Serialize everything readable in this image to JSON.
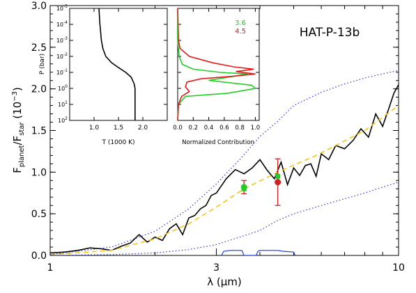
{
  "chart_data": [
    {
      "type": "line",
      "title": "HAT-P-13b",
      "xlabel": "λ (μm)",
      "ylabel_parts": {
        "f": "F",
        "planet": "planet",
        "slash": "/F",
        "star": "star",
        "units": " (10",
        "exp": "−3",
        "close": ")"
      },
      "xscale": "log",
      "xlim": [
        1,
        10
      ],
      "ylim": [
        0,
        3.0
      ],
      "xticks": [
        1,
        3,
        10
      ],
      "xtick_labels": [
        "1",
        "3",
        "10"
      ],
      "yticks": [
        0,
        0.5,
        1.0,
        1.5,
        2.0,
        2.5,
        3.0
      ],
      "ytick_labels": [
        "0.0",
        "0.5",
        "1.0",
        "1.5",
        "2.0",
        "2.5",
        "3.0"
      ],
      "series": [
        {
          "role": "model-spectrum",
          "color": "#000000",
          "x": [
            1.0,
            1.1,
            1.2,
            1.3,
            1.4,
            1.5,
            1.6,
            1.7,
            1.8,
            1.9,
            2.0,
            2.1,
            2.2,
            2.3,
            2.4,
            2.5,
            2.6,
            2.7,
            2.8,
            2.9,
            3.0,
            3.2,
            3.4,
            3.6,
            3.8,
            4.0,
            4.2,
            4.4,
            4.6,
            4.8,
            5.0,
            5.2,
            5.4,
            5.6,
            5.8,
            6.0,
            6.3,
            6.6,
            7.0,
            7.4,
            7.8,
            8.2,
            8.6,
            9.0,
            9.4,
            9.7,
            10.0
          ],
          "y": [
            0.03,
            0.04,
            0.06,
            0.09,
            0.08,
            0.06,
            0.11,
            0.15,
            0.25,
            0.16,
            0.22,
            0.18,
            0.32,
            0.38,
            0.25,
            0.45,
            0.48,
            0.56,
            0.6,
            0.72,
            0.75,
            0.92,
            1.03,
            0.98,
            1.05,
            1.15,
            1.02,
            0.92,
            1.12,
            0.85,
            1.05,
            0.96,
            1.08,
            1.1,
            0.95,
            1.22,
            1.15,
            1.32,
            1.28,
            1.38,
            1.52,
            1.42,
            1.7,
            1.55,
            1.78,
            1.95,
            2.05
          ]
        },
        {
          "role": "fit-dashed",
          "color": "#f5c518",
          "x": [
            1.0,
            1.5,
            2.0,
            2.5,
            3.0,
            3.6,
            4.5,
            5.8,
            8.0,
            10.0
          ],
          "y": [
            0.01,
            0.06,
            0.2,
            0.38,
            0.58,
            0.8,
            1.0,
            1.2,
            1.5,
            1.8
          ]
        },
        {
          "role": "upper-envelope",
          "color": "#3333cc",
          "x": [
            1.0,
            1.5,
            2.0,
            2.5,
            3.0,
            3.5,
            4.0,
            4.5,
            5.0,
            6.0,
            7.0,
            8.0,
            9.0,
            10.0
          ],
          "y": [
            0.01,
            0.1,
            0.29,
            0.56,
            0.86,
            1.15,
            1.43,
            1.61,
            1.8,
            1.96,
            2.06,
            2.13,
            2.18,
            2.22
          ]
        },
        {
          "role": "lower-envelope",
          "color": "#3333cc",
          "x": [
            1.0,
            1.5,
            2.0,
            2.5,
            3.0,
            3.5,
            4.0,
            4.5,
            5.0,
            6.0,
            7.0,
            8.0,
            9.0,
            10.0
          ],
          "y": [
            0.0,
            0.01,
            0.03,
            0.07,
            0.13,
            0.22,
            0.3,
            0.42,
            0.5,
            0.6,
            0.68,
            0.75,
            0.82,
            0.88
          ]
        }
      ],
      "bandpasses": [
        {
          "color": "#1f3fcc",
          "x": [
            3.1,
            3.15,
            3.3,
            3.4,
            3.55,
            3.6,
            3.9,
            3.95,
            4.0,
            4.5,
            4.65,
            5.0,
            5.05
          ],
          "y": [
            0.0,
            0.05,
            0.06,
            0.06,
            0.06,
            0.0,
            0.0,
            0.05,
            0.06,
            0.06,
            0.05,
            0.04,
            0.0
          ]
        }
      ],
      "points": [
        {
          "label": "3.6",
          "x": 3.6,
          "y": 0.82,
          "err": 0.08,
          "color": "#22cc22",
          "err_color": "#cc2222"
        },
        {
          "label": "3.6",
          "x": 3.6,
          "y": 0.8,
          "err": 0.0,
          "color": "#22cc22",
          "err_color": "#cc2222",
          "shape": "square"
        },
        {
          "label": "4.5",
          "x": 4.5,
          "y": 0.88,
          "err": 0.28,
          "color": "#cc2222",
          "err_color": "#cc2222"
        },
        {
          "label": "4.5",
          "x": 4.5,
          "y": 0.95,
          "err": 0.0,
          "color": "#22cc22",
          "err_color": "#cc2222",
          "shape": "square"
        }
      ]
    },
    {
      "type": "line",
      "inset": "temperature-pressure",
      "xlabel": "T (1000 K)",
      "ylabel": "P (bar)",
      "xlim": [
        0.5,
        2.5
      ],
      "xticks": [
        1.0,
        1.5,
        2.0
      ],
      "xtick_labels": [
        "1.0",
        "1.5",
        "2.0"
      ],
      "ytick_labels": [
        {
          "base": "10",
          "exp": "-5"
        },
        {
          "base": "10",
          "exp": "-4"
        },
        {
          "base": "10",
          "exp": "-3"
        },
        {
          "base": "10",
          "exp": "-2"
        },
        {
          "base": "10",
          "exp": "-1"
        },
        {
          "base": "10",
          "exp": "0"
        },
        {
          "base": "10",
          "exp": "1"
        },
        {
          "base": "10",
          "exp": "2"
        }
      ],
      "series": [
        {
          "color": "#000000",
          "logP": [
            -5,
            -4,
            -3,
            -2.5,
            -2,
            -1.6,
            -1.3,
            -1.0,
            -0.7,
            -0.3,
            0,
            1,
            2
          ],
          "T": [
            1.1,
            1.12,
            1.15,
            1.18,
            1.24,
            1.36,
            1.5,
            1.65,
            1.76,
            1.82,
            1.84,
            1.84,
            1.84
          ]
        }
      ]
    },
    {
      "type": "line",
      "inset": "normalized-contribution",
      "xlabel": "Normalized Contribution",
      "xlim": [
        0,
        1.05
      ],
      "xticks": [
        0.0,
        0.2,
        0.4,
        0.6,
        0.8,
        1.0
      ],
      "xtick_labels": [
        "0.0",
        "0.2",
        "0.4",
        "0.6",
        "0.8",
        "1.0"
      ],
      "legend": [
        {
          "label": "3.6",
          "color": "#22cc22"
        },
        {
          "label": "4.5",
          "color": "#e31a1a"
        }
      ],
      "series": [
        {
          "name": "3.6",
          "color": "#22cc22",
          "logP": [
            -5,
            -3,
            -2.5,
            -2,
            -1.5,
            -1.2,
            -1.0,
            -0.9,
            -0.8,
            -0.5,
            -0.2,
            0,
            0.3,
            0.5,
            1,
            2
          ],
          "value": [
            0,
            0,
            0.01,
            0.02,
            0.06,
            0.2,
            0.55,
            0.9,
            0.78,
            0.4,
            0.95,
            1.0,
            0.65,
            0.1,
            0.01,
            0
          ]
        },
        {
          "name": "4.5",
          "color": "#e31a1a",
          "logP": [
            -5,
            -3,
            -2.5,
            -2,
            -1.6,
            -1.35,
            -1.2,
            -1.05,
            -0.9,
            -0.75,
            -0.6,
            -0.4,
            -0.1,
            0.2,
            0.5,
            1,
            2
          ],
          "value": [
            0,
            0.01,
            0.03,
            0.15,
            0.45,
            0.72,
            0.98,
            0.75,
            1.0,
            0.7,
            0.3,
            0.12,
            0.1,
            0.15,
            0.05,
            0.01,
            0
          ]
        }
      ]
    }
  ]
}
